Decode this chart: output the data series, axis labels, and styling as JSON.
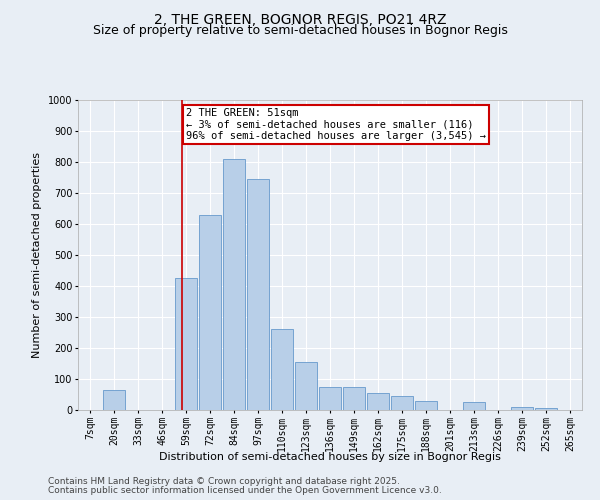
{
  "title": "2, THE GREEN, BOGNOR REGIS, PO21 4RZ",
  "subtitle": "Size of property relative to semi-detached houses in Bognor Regis",
  "xlabel": "Distribution of semi-detached houses by size in Bognor Regis",
  "ylabel": "Number of semi-detached properties",
  "categories": [
    "7sqm",
    "20sqm",
    "33sqm",
    "46sqm",
    "59sqm",
    "72sqm",
    "84sqm",
    "97sqm",
    "110sqm",
    "123sqm",
    "136sqm",
    "149sqm",
    "162sqm",
    "175sqm",
    "188sqm",
    "201sqm",
    "213sqm",
    "226sqm",
    "239sqm",
    "252sqm",
    "265sqm"
  ],
  "bar_heights": [
    0,
    65,
    0,
    0,
    425,
    630,
    810,
    745,
    260,
    155,
    75,
    75,
    55,
    45,
    30,
    0,
    25,
    0,
    10,
    5,
    0
  ],
  "bar_color": "#b8cfe8",
  "bar_edge_color": "#6699cc",
  "annotation_text": "2 THE GREEN: 51sqm\n← 3% of semi-detached houses are smaller (116)\n96% of semi-detached houses are larger (3,545) →",
  "annotation_box_color": "#ffffff",
  "annotation_box_edge_color": "#cc0000",
  "vline_color": "#cc0000",
  "ylim": [
    0,
    1000
  ],
  "yticks": [
    0,
    100,
    200,
    300,
    400,
    500,
    600,
    700,
    800,
    900,
    1000
  ],
  "footer1": "Contains HM Land Registry data © Crown copyright and database right 2025.",
  "footer2": "Contains public sector information licensed under the Open Government Licence v3.0.",
  "bg_color": "#e8eef5",
  "grid_color": "#ffffff",
  "title_fontsize": 10,
  "subtitle_fontsize": 9,
  "axis_label_fontsize": 8,
  "tick_fontsize": 7,
  "footer_fontsize": 6.5,
  "annot_fontsize": 7.5
}
